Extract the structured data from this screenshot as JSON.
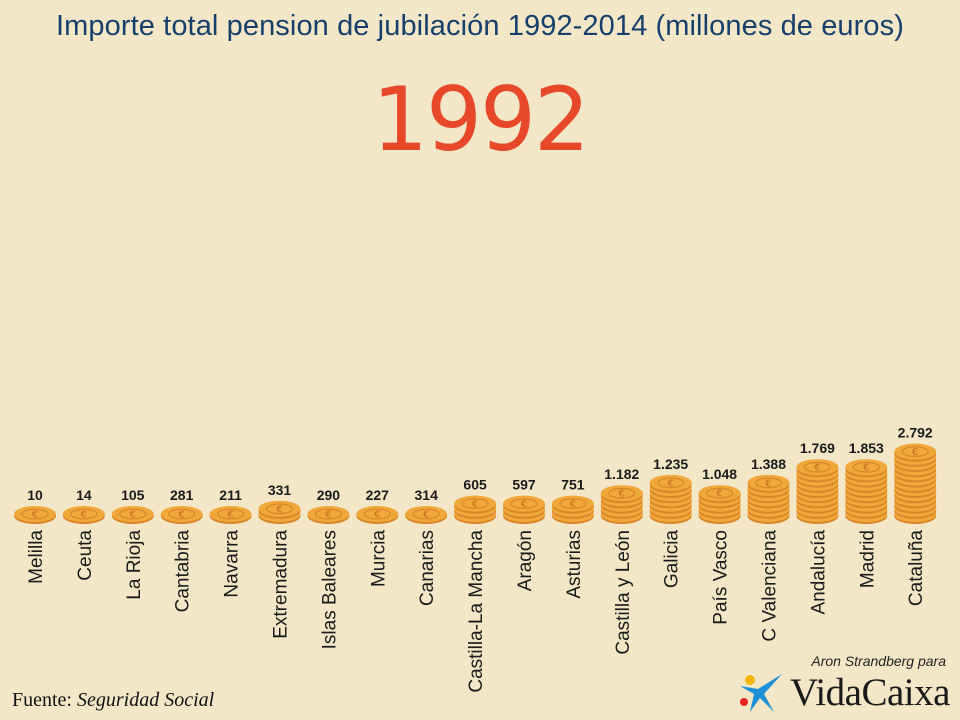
{
  "title": "Importe total pension de jubilación 1992-2014 (millones de euros)",
  "year": "1992",
  "source": {
    "label": "Fuente:",
    "value": "Seguridad Social"
  },
  "credit": "Aron Strandberg para",
  "logo": {
    "text": "VidaCaixa",
    "icon": "star-logo-icon"
  },
  "colors": {
    "background": "#f3e7c7",
    "title": "#173f6b",
    "year": "#e8482a",
    "coin": "#f0a83a",
    "coin_edge": "#d9862a"
  },
  "chart_data": {
    "type": "bar",
    "mark": "coin-stack",
    "title": "Importe total pension de jubilación 1992-2014 (millones de euros)",
    "categories": [
      "Melilla",
      "Ceuta",
      "La Rioja",
      "Cantabria",
      "Navarra",
      "Extremadura",
      "Islas Baleares",
      "Murcia",
      "Canarias",
      "Castilla-La Mancha",
      "Aragón",
      "Asturias",
      "Castilla y León",
      "Galicia",
      "País Vasco",
      "C Valenciana",
      "Andalucía",
      "Madrid",
      "Cataluña"
    ],
    "values": [
      10,
      14,
      105,
      281,
      211,
      331,
      290,
      227,
      314,
      605,
      597,
      751,
      1182,
      1235,
      1048,
      1388,
      1769,
      1853,
      2792
    ],
    "value_labels": [
      "10",
      "14",
      "105",
      "281",
      "211",
      "331",
      "290",
      "227",
      "314",
      "605",
      "597",
      "751",
      "1.182",
      "1.235",
      "1.048",
      "1.388",
      "1.769",
      "1.853",
      "2.792"
    ],
    "coins": [
      1,
      1,
      1,
      1,
      1,
      2,
      1,
      1,
      1,
      3,
      3,
      3,
      5,
      7,
      5,
      7,
      10,
      10,
      13
    ]
  }
}
